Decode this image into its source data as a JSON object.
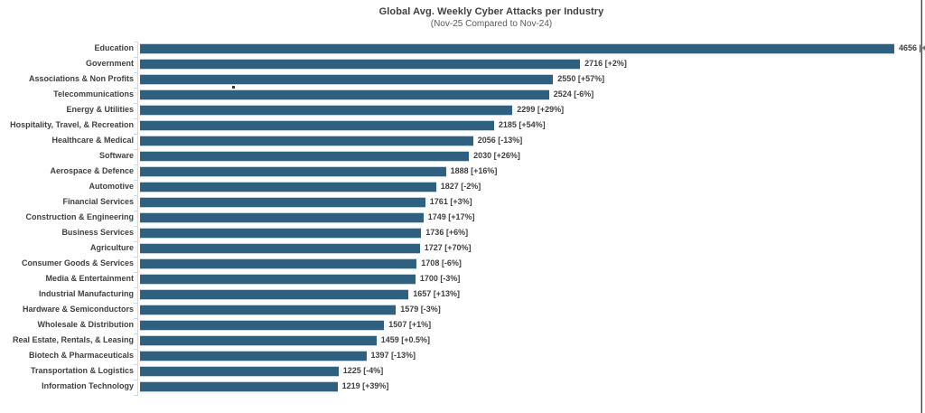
{
  "chart": {
    "title": "Global Avg. Weekly Cyber Attacks per Industry",
    "subtitle": "(Nov-25 Compared to Nov-24)",
    "bar_color": "#2f6080",
    "axis_color": "#d9d9d9",
    "text_color": "#3f3f3f",
    "right_border_color": "#454545",
    "background_color": "#ffffff"
  },
  "chart_data": {
    "type": "bar",
    "orientation": "horizontal",
    "title": "Global Avg. Weekly Cyber Attacks per Industry",
    "subtitle": "(Nov-25 Compared to Nov-24)",
    "xlabel": "",
    "ylabel": "",
    "xlim": [
      0,
      4656
    ],
    "grid": false,
    "legend": false,
    "sorted": "descending",
    "categories": [
      "Education",
      "Government",
      "Associations & Non Profits",
      "Telecommunications",
      "Energy & Utilities",
      "Hospitality, Travel, & Recreation",
      "Healthcare & Medical",
      "Software",
      "Aerospace & Defence",
      "Automotive",
      "Financial Services",
      "Construction & Engineering",
      "Business Services",
      "Agriculture",
      "Consumer Goods & Services",
      "Media & Entertainment",
      "Industrial Manufacturing",
      "Hardware & Semiconductors",
      "Wholesale & Distribution",
      "Real Estate, Rentals, & Leasing",
      "Biotech & Pharmaceuticals",
      "Transportation & Logistics",
      "Information Technology"
    ],
    "values": [
      4656,
      2716,
      2550,
      2524,
      2299,
      2185,
      2056,
      2030,
      1888,
      1827,
      1761,
      1749,
      1736,
      1727,
      1708,
      1700,
      1657,
      1579,
      1507,
      1459,
      1397,
      1225,
      1219
    ],
    "value_labels": [
      "4656 [+",
      "2716 [+2%]",
      "2550 [+57%]",
      "2524 [-6%]",
      "2299 [+29%]",
      "2185 [+54%]",
      "2056 [-13%]",
      "2030 [+26%]",
      "1888 [+16%]",
      "1827 [-2%]",
      "1761 [+3%]",
      "1749 [+17%]",
      "1736 [+6%]",
      "1727 [+70%]",
      "1708 [-6%]",
      "1700 [-3%]",
      "1657 [+13%]",
      "1579 [-3%]",
      "1507 [+1%]",
      "1459 [+0.5%]",
      "1397 [-13%]",
      "1225 [-4%]",
      "1219 [+39%]"
    ],
    "note_education_label_clipped": "Education value label is cut off at the right edge of the image after '4656 [+'"
  }
}
